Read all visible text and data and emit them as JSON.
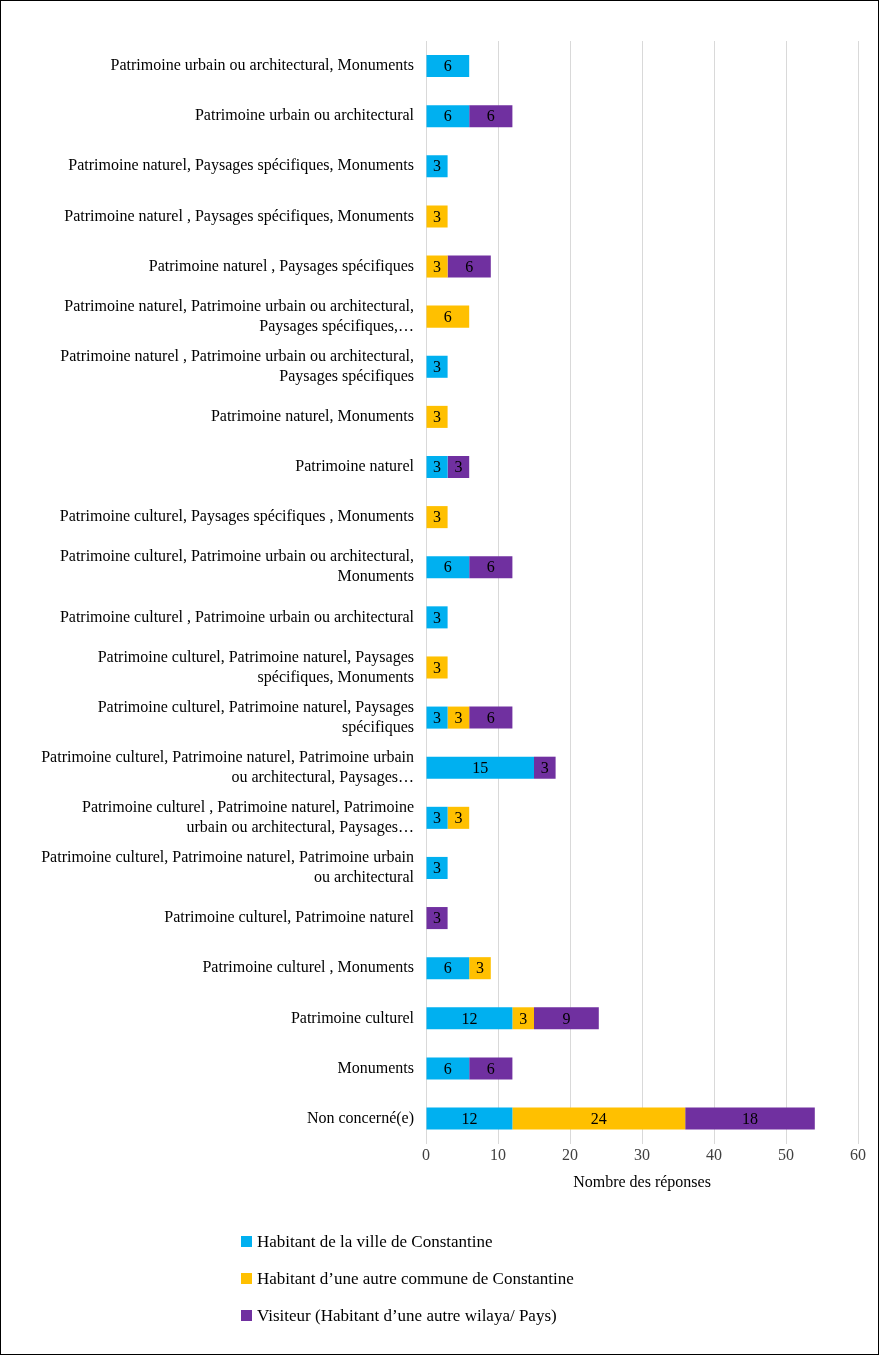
{
  "chart_data": {
    "type": "bar",
    "orientation": "horizontal",
    "stacked": true,
    "data_labels": true,
    "grid": "x",
    "legend": "bottom",
    "xlabel": "Nombre des réponses",
    "xlim": [
      0,
      60
    ],
    "xticks": [
      0,
      10,
      20,
      30,
      40,
      50,
      60
    ],
    "categories": [
      "Patrimoine urbain ou architectural, Monuments",
      "Patrimoine urbain ou architectural",
      "Patrimoine naturel, Paysages spécifiques, Monuments",
      "Patrimoine naturel , Paysages spécifiques, Monuments",
      "Patrimoine naturel , Paysages spécifiques",
      "Patrimoine naturel, Patrimoine urbain ou architectural, Paysages spécifiques,…",
      "Patrimoine naturel , Patrimoine urbain ou architectural, Paysages spécifiques",
      "Patrimoine naturel, Monuments",
      "Patrimoine naturel",
      "Patrimoine culturel, Paysages spécifiques , Monuments",
      "Patrimoine culturel, Patrimoine urbain ou architectural, Monuments",
      "Patrimoine culturel , Patrimoine urbain ou architectural",
      "Patrimoine culturel, Patrimoine naturel, Paysages spécifiques, Monuments",
      "Patrimoine culturel, Patrimoine naturel, Paysages spécifiques",
      "Patrimoine culturel, Patrimoine naturel, Patrimoine urbain ou architectural, Paysages…",
      "Patrimoine culturel , Patrimoine naturel, Patrimoine urbain ou architectural, Paysages…",
      "Patrimoine culturel, Patrimoine naturel, Patrimoine urbain ou architectural",
      "Patrimoine culturel, Patrimoine naturel",
      "Patrimoine culturel , Monuments",
      "Patrimoine culturel",
      "Monuments",
      "Non concerné(e)"
    ],
    "series": [
      {
        "name": "Habitant de la ville de Constantine",
        "color": "#00b0f0",
        "values": [
          6,
          6,
          3,
          null,
          null,
          null,
          3,
          null,
          3,
          null,
          6,
          3,
          null,
          3,
          15,
          3,
          3,
          null,
          6,
          12,
          6,
          12
        ]
      },
      {
        "name": "Habitant d’une autre commune de Constantine",
        "color": "#ffc000",
        "values": [
          null,
          null,
          null,
          3,
          3,
          6,
          null,
          3,
          null,
          3,
          null,
          null,
          3,
          3,
          null,
          3,
          null,
          null,
          3,
          3,
          null,
          24
        ]
      },
      {
        "name": "Visiteur (Habitant d’une autre wilaya/ Pays)",
        "color": "#7030a0",
        "values": [
          null,
          6,
          null,
          null,
          6,
          null,
          null,
          null,
          3,
          null,
          6,
          null,
          null,
          6,
          3,
          null,
          null,
          3,
          null,
          9,
          6,
          18
        ]
      }
    ]
  }
}
